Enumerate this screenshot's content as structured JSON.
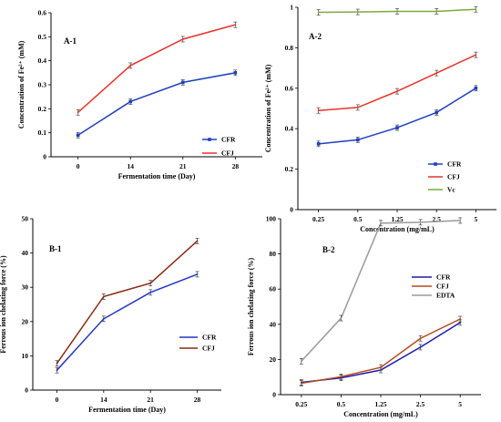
{
  "chart_data": [
    {
      "panel_label": "A-1",
      "type": "line",
      "categories": [
        "0",
        "14",
        "21",
        "28"
      ],
      "xlabel": "Fermentation time (Day)",
      "ylabel": "Concentration of Fe²⁺ (mM)",
      "ylim": [
        0,
        0.6
      ],
      "yticks": [
        "0",
        "0.1",
        "0.2",
        "0.3",
        "0.4",
        "0.5",
        "0.6"
      ],
      "legend_position": "right",
      "series": [
        {
          "name": "CFR",
          "color": "#1f3fbf",
          "values": [
            0.09,
            0.23,
            0.31,
            0.35
          ],
          "marker": true
        },
        {
          "name": "CFJ",
          "color": "#e8322b",
          "values": [
            0.185,
            0.38,
            0.49,
            0.55
          ],
          "marker": false
        }
      ]
    },
    {
      "panel_label": "A-2",
      "type": "line",
      "categories": [
        "0.25",
        "0.5",
        "1.25",
        "2.5",
        "5"
      ],
      "xlabel": "Concentration (mg/mL)",
      "ylabel": "Concentration of Fe²⁺ (mM)",
      "ylim": [
        0,
        1
      ],
      "yticks": [
        "0",
        "0.2",
        "0.4",
        "0.6",
        "0.8",
        "1"
      ],
      "legend_position": "right",
      "series": [
        {
          "name": "CFR",
          "color": "#1f3fbf",
          "values": [
            0.325,
            0.345,
            0.405,
            0.48,
            0.6
          ],
          "marker": true
        },
        {
          "name": "CFJ",
          "color": "#e8322b",
          "values": [
            0.49,
            0.505,
            0.585,
            0.675,
            0.765
          ],
          "marker": false
        },
        {
          "name": "Vc",
          "color": "#7bab3a",
          "values": [
            0.975,
            0.977,
            0.98,
            0.98,
            0.99
          ],
          "marker": false
        }
      ]
    },
    {
      "panel_label": "B-1",
      "type": "line",
      "categories": [
        "0",
        "14",
        "21",
        "28"
      ],
      "xlabel": "Fermentation time (Day)",
      "ylabel": "Ferrous ion chelating force (%)",
      "ylim": [
        0,
        50
      ],
      "yticks": [
        "0",
        "10",
        "20",
        "30",
        "40",
        "50"
      ],
      "legend_position": "lower-right",
      "series": [
        {
          "name": "CFR",
          "color": "#2336c6",
          "values": [
            5.8,
            20.8,
            28.5,
            33.8
          ],
          "marker": false
        },
        {
          "name": "CFJ",
          "color": "#8b2a12",
          "values": [
            7.8,
            27.3,
            31.2,
            43.5
          ],
          "marker": false
        }
      ]
    },
    {
      "panel_label": "B-2",
      "type": "line",
      "categories": [
        "0.25",
        "0.5",
        "1.25",
        "2.5",
        "5"
      ],
      "xlabel": "Concentration (mg/mL)",
      "ylabel": "Ferrous ion chelating force (%)",
      "ylim": [
        0,
        100
      ],
      "yticks": [
        "0",
        "20",
        "40",
        "60",
        "80",
        "100"
      ],
      "legend_position": "middle-right",
      "series": [
        {
          "name": "CFR",
          "color": "#1b1bb0",
          "values": [
            7,
            9.5,
            14,
            27,
            41
          ],
          "marker": false
        },
        {
          "name": "CFJ",
          "color": "#b54a1e",
          "values": [
            6.5,
            10.2,
            15.5,
            32,
            43
          ],
          "marker": false
        },
        {
          "name": "EDTA",
          "color": "#9a9a9a",
          "values": [
            19,
            43.5,
            97.5,
            98,
            99
          ],
          "marker": false
        }
      ]
    }
  ]
}
